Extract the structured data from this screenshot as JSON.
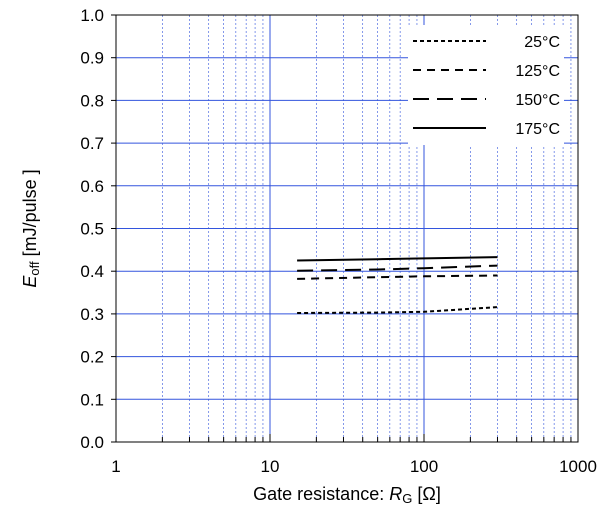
{
  "chart_data": {
    "type": "line",
    "xscale": "log",
    "xlim": [
      1,
      1000
    ],
    "ylim": [
      0.0,
      1.0
    ],
    "x_ticks": [
      "1",
      "10",
      "100",
      "1000"
    ],
    "y_ticks": [
      "0.0",
      "0.1",
      "0.2",
      "0.3",
      "0.4",
      "0.5",
      "0.6",
      "0.7",
      "0.8",
      "0.9",
      "1.0"
    ],
    "xlabel": {
      "prefix": "Gate resistance: ",
      "symbol": "R",
      "sub": "G",
      "suffix": " [Ω]"
    },
    "ylabel": {
      "symbol": "E",
      "sub": "off",
      "suffix": " [mJ/pulse ]"
    },
    "grid": true,
    "legend_position": "top-right",
    "series": [
      {
        "name": "25°C",
        "dash": "dotted",
        "x": [
          15,
          50,
          100,
          300
        ],
        "y": [
          0.302,
          0.303,
          0.305,
          0.316
        ]
      },
      {
        "name": "125°C",
        "dash": "short-dash",
        "x": [
          15,
          50,
          100,
          300
        ],
        "y": [
          0.382,
          0.386,
          0.388,
          0.39
        ]
      },
      {
        "name": "150°C",
        "dash": "long-dash",
        "x": [
          15,
          50,
          100,
          300
        ],
        "y": [
          0.401,
          0.404,
          0.407,
          0.413
        ]
      },
      {
        "name": "175°C",
        "dash": "solid",
        "x": [
          15,
          50,
          100,
          300
        ],
        "y": [
          0.425,
          0.428,
          0.43,
          0.433
        ]
      }
    ]
  }
}
